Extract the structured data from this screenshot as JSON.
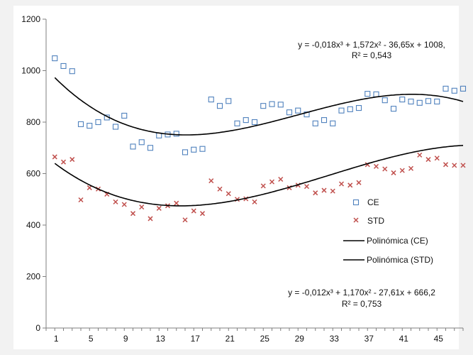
{
  "chart_data": {
    "type": "scatter",
    "title": "",
    "xlabel": "",
    "ylabel": "",
    "xlim": [
      0,
      48
    ],
    "ylim": [
      0,
      1200
    ],
    "x_ticks": [
      1,
      5,
      9,
      13,
      17,
      21,
      25,
      29,
      33,
      37,
      41,
      45
    ],
    "x_tick_labels": [
      "1",
      "5",
      "9",
      "13",
      "17",
      "21",
      "25",
      "29",
      "33",
      "37",
      "41",
      "45"
    ],
    "y_ticks": [
      0,
      200,
      400,
      600,
      800,
      1000,
      1200
    ],
    "y_tick_labels": [
      "0",
      "200",
      "400",
      "600",
      "800",
      "1000",
      "1200"
    ],
    "grid": false,
    "legend_position": "right",
    "series": [
      {
        "name": "CE",
        "kind": "markers",
        "marker": "square",
        "color": "#4f81bd",
        "x": [
          1,
          2,
          3,
          4,
          5,
          6,
          7,
          8,
          9,
          10,
          11,
          12,
          13,
          14,
          15,
          16,
          17,
          18,
          19,
          20,
          21,
          22,
          23,
          24,
          25,
          26,
          27,
          28,
          29,
          30,
          31,
          32,
          33,
          34,
          35,
          36,
          37,
          38,
          39,
          40,
          41,
          42,
          43,
          44,
          45,
          46,
          47,
          48
        ],
        "y": [
          1048,
          1018,
          998,
          792,
          786,
          800,
          818,
          782,
          825,
          705,
          722,
          700,
          748,
          752,
          755,
          683,
          693,
          696,
          888,
          863,
          882,
          795,
          808,
          800,
          863,
          870,
          868,
          838,
          845,
          830,
          795,
          808,
          795,
          845,
          850,
          855,
          910,
          908,
          885,
          852,
          888,
          880,
          875,
          882,
          880,
          930,
          922,
          930
        ]
      },
      {
        "name": "STD",
        "kind": "markers",
        "marker": "x",
        "color": "#c0504d",
        "x": [
          1,
          2,
          3,
          4,
          5,
          6,
          7,
          8,
          9,
          10,
          11,
          12,
          13,
          14,
          15,
          16,
          17,
          18,
          19,
          20,
          21,
          22,
          23,
          24,
          25,
          26,
          27,
          28,
          29,
          30,
          31,
          32,
          33,
          34,
          35,
          36,
          37,
          38,
          39,
          40,
          41,
          42,
          43,
          44,
          45,
          46,
          47,
          48
        ],
        "y": [
          665,
          645,
          655,
          498,
          545,
          540,
          520,
          490,
          480,
          445,
          470,
          425,
          465,
          475,
          485,
          420,
          455,
          445,
          572,
          540,
          522,
          500,
          502,
          490,
          552,
          568,
          578,
          545,
          555,
          550,
          525,
          535,
          532,
          560,
          555,
          565,
          635,
          628,
          618,
          603,
          612,
          620,
          672,
          655,
          660,
          635,
          632,
          632
        ]
      },
      {
        "name": "Polinómica (CE)",
        "kind": "trendline",
        "color": "#000000",
        "coefficients": [
          1008,
          -36.65,
          1.572,
          -0.018
        ],
        "x_range": [
          1,
          48
        ]
      },
      {
        "name": "Polinómica (STD)",
        "kind": "trendline",
        "color": "#000000",
        "coefficients": [
          666.2,
          -27.61,
          1.17,
          -0.012
        ],
        "x_range": [
          1,
          48
        ]
      }
    ],
    "annotations": [
      {
        "id": "ce-equation",
        "lines": [
          "y = -0,018x³ + 1,572x² - 36,65x + 1008,",
          "R² = 0,543"
        ]
      },
      {
        "id": "std-equation",
        "lines": [
          "y = -0,012x³ + 1,170x² - 27,61x + 666,2",
          "R² = 0,753"
        ]
      }
    ]
  }
}
